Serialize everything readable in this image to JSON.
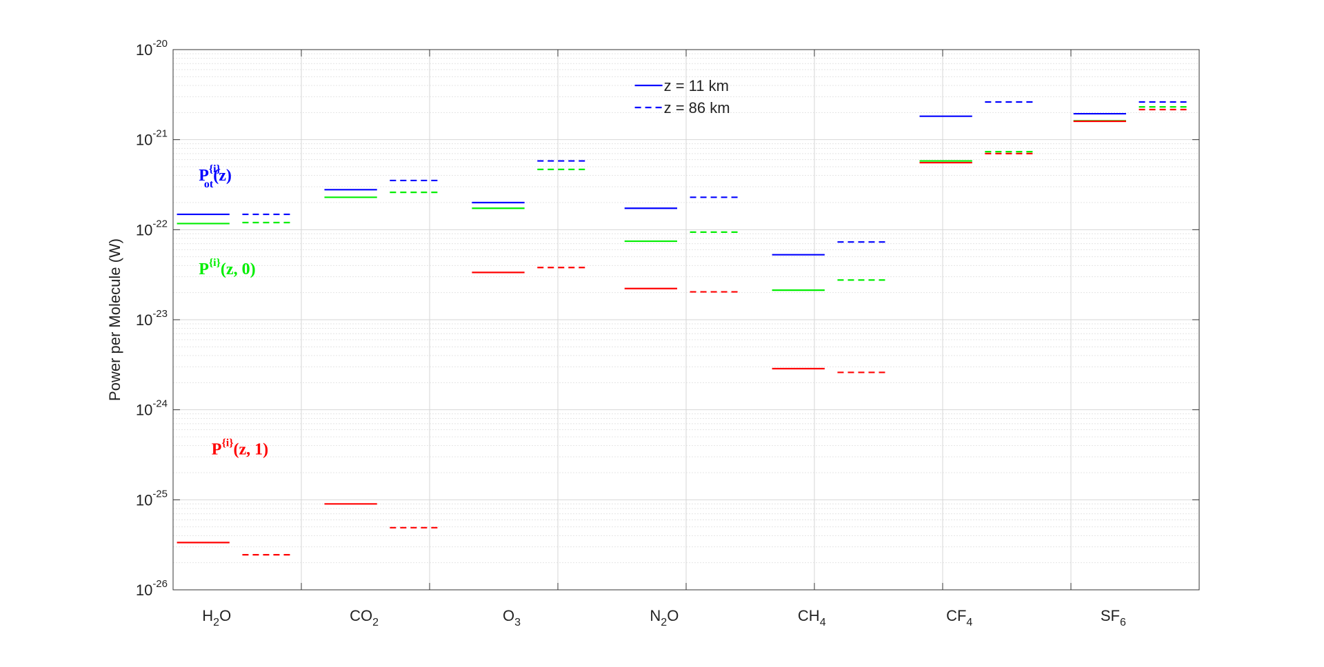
{
  "chart_data": {
    "type": "segments",
    "y_label": "Power per Molecule (W)",
    "log_y": true,
    "grid": true,
    "minor_grid": true,
    "ylim": [
      1e-26,
      1e-20
    ],
    "yticks": [
      {
        "value": 1e-26,
        "label": "10",
        "exponent": "-26"
      },
      {
        "value": 1e-25,
        "label": "10",
        "exponent": "-25"
      },
      {
        "value": 1e-24,
        "label": "10",
        "exponent": "-24"
      },
      {
        "value": 1e-23,
        "label": "10",
        "exponent": "-23"
      },
      {
        "value": 1e-22,
        "label": "10",
        "exponent": "-22"
      },
      {
        "value": 1e-21,
        "label": "10",
        "exponent": "-21"
      },
      {
        "value": 1e-20,
        "label": "10",
        "exponent": "-20"
      }
    ],
    "xlim": [
      0,
      8
    ],
    "xgrid": [
      1,
      2,
      3,
      4,
      5,
      6,
      7
    ],
    "categories": [
      "H2O",
      "CO2",
      "O3",
      "N2O",
      "CH4",
      "CF4",
      "SF6"
    ],
    "x": [
      0.49,
      1.64,
      2.79,
      3.98,
      5.13,
      6.28,
      7.48
    ],
    "series": [
      {
        "color": "#0000ff",
        "dashed": false,
        "values": [
          1.48e-22,
          2.78e-22,
          2e-22,
          1.73e-22,
          5.27e-23,
          1.82e-21,
          1.94e-21
        ]
      },
      {
        "color": "#0000ff",
        "dashed": true,
        "values": [
          1.48e-22,
          3.52e-22,
          5.8e-22,
          2.29e-22,
          7.3e-23,
          2.62e-21,
          2.62e-21
        ]
      },
      {
        "color": "#00ee00",
        "dashed": false,
        "values": [
          1.17e-22,
          2.29e-22,
          1.73e-22,
          7.45e-23,
          2.13e-23,
          5.8e-22,
          1.62e-21
        ]
      },
      {
        "color": "#00ee00",
        "dashed": true,
        "values": [
          1.2e-22,
          2.6e-22,
          4.67e-22,
          9.4e-23,
          2.76e-23,
          7.35e-22,
          2.31e-21
        ]
      },
      {
        "color": "#ff0000",
        "dashed": false,
        "values": [
          3.35e-26,
          9e-26,
          3.35e-23,
          2.22e-23,
          2.86e-24,
          5.55e-22,
          1.6e-21
        ]
      },
      {
        "color": "#ff0000",
        "dashed": true,
        "values": [
          2.45e-26,
          4.9e-26,
          3.8e-23,
          2.04e-23,
          2.6e-24,
          7e-22,
          2.16e-21
        ]
      }
    ],
    "legend": {
      "entries": [
        "z = 11 km",
        "z = 86 km"
      ],
      "color": "#0000ff",
      "location": "north"
    },
    "annotations": [
      {
        "text": "P",
        "sup": "{i}",
        "sub": "ot",
        "tail": "(z)",
        "color": "#0000ff",
        "x": 0.2,
        "y": 3.5e-22
      },
      {
        "text": "P",
        "sup": "{i}",
        "tail": "(z, 0)",
        "color": "#00ee00",
        "x": 0.2,
        "y": 3.2e-23
      },
      {
        "text": "P",
        "sup": "{i}",
        "tail": "(z, 1)",
        "color": "#ff0000",
        "x": 0.3,
        "y": 3.2e-25
      }
    ]
  }
}
